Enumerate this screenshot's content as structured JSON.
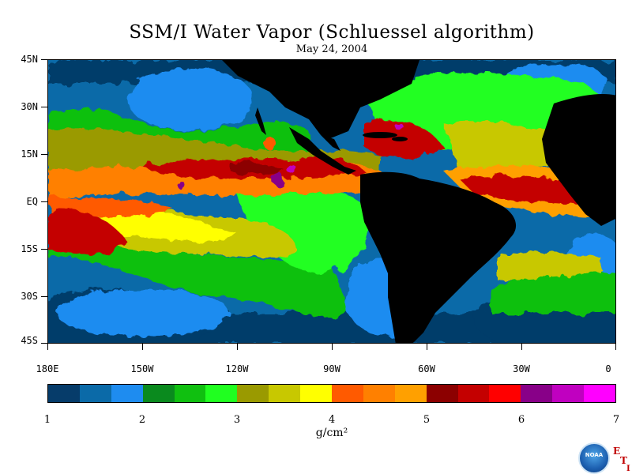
{
  "title": "SSM/I Water Vapor (Schluessel algorithm)",
  "subtitle": "May 24, 2004",
  "lat_labels": [
    "45N",
    "30N",
    "15N",
    "EQ",
    "15S",
    "30S",
    "45S"
  ],
  "lon_labels": [
    "180E",
    "150W",
    "120W",
    "90W",
    "60W",
    "30W",
    "0"
  ],
  "colorbar": {
    "colors": [
      "#063c6a",
      "#0b6aa8",
      "#1e8cf0",
      "#0a8a1e",
      "#10c010",
      "#20ff20",
      "#9a9a00",
      "#c8c800",
      "#ffff00",
      "#ff5a00",
      "#ff8000",
      "#ffa000",
      "#8c0000",
      "#c40000",
      "#ff0000",
      "#880088",
      "#c000c0",
      "#ff00ff"
    ],
    "tick_labels": [
      "1",
      "2",
      "3",
      "4",
      "5",
      "6",
      "7"
    ],
    "unit": "g/cm²"
  },
  "land_color": "#000000",
  "logo_text": "NOAA",
  "corner_letters": [
    "E",
    "T",
    "I"
  ]
}
